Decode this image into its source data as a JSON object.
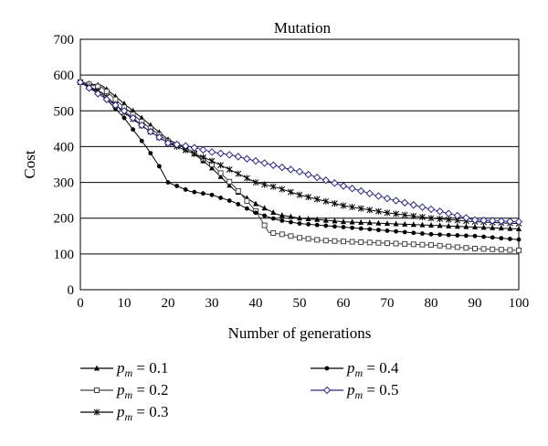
{
  "chart_data": {
    "type": "line",
    "title": "Mutation",
    "xlabel": "Number of generations",
    "ylabel": "Cost",
    "xlim": [
      0,
      100
    ],
    "ylim": [
      0,
      700
    ],
    "xticks": [
      0,
      10,
      20,
      30,
      40,
      50,
      60,
      70,
      80,
      90,
      100
    ],
    "yticks": [
      0,
      100,
      200,
      300,
      400,
      500,
      600,
      700
    ],
    "grid": "horizontal",
    "legend_position": "bottom",
    "series": [
      {
        "name_var": "p",
        "name_sub": "m",
        "name_rest": " = 0.1",
        "marker": "triangle",
        "color": "#000000",
        "x": [
          0,
          5,
          10,
          15,
          20,
          25,
          30,
          35,
          40,
          45,
          50,
          55,
          60,
          70,
          80,
          90,
          100
        ],
        "y": [
          580,
          570,
          520,
          470,
          420,
          390,
          340,
          280,
          240,
          210,
          200,
          195,
          190,
          185,
          180,
          175,
          170
        ]
      },
      {
        "name_var": "p",
        "name_sub": "m",
        "name_rest": " = 0.2",
        "marker": "square",
        "color": "#444444",
        "x": [
          0,
          5,
          10,
          15,
          20,
          25,
          30,
          35,
          40,
          43,
          46,
          50,
          55,
          60,
          70,
          80,
          90,
          100
        ],
        "y": [
          580,
          565,
          510,
          460,
          415,
          390,
          350,
          290,
          220,
          160,
          155,
          145,
          138,
          135,
          130,
          125,
          115,
          110
        ]
      },
      {
        "name_var": "p",
        "name_sub": "m",
        "name_rest": " = 0.3",
        "marker": "star",
        "color": "#000000",
        "x": [
          0,
          5,
          10,
          15,
          20,
          25,
          30,
          35,
          40,
          45,
          50,
          60,
          70,
          80,
          90,
          100
        ],
        "y": [
          580,
          550,
          495,
          450,
          410,
          385,
          360,
          330,
          300,
          285,
          265,
          235,
          215,
          200,
          190,
          185
        ]
      },
      {
        "name_var": "p",
        "name_sub": "m",
        "name_rest": " = 0.4",
        "marker": "circle",
        "color": "#000000",
        "x": [
          0,
          5,
          10,
          15,
          18,
          20,
          25,
          30,
          35,
          40,
          45,
          50,
          60,
          70,
          80,
          90,
          100
        ],
        "y": [
          580,
          545,
          480,
          400,
          345,
          300,
          275,
          265,
          245,
          215,
          195,
          185,
          175,
          165,
          155,
          150,
          140
        ]
      },
      {
        "name_var": "p",
        "name_sub": "m",
        "name_rest": " = 0.5",
        "marker": "diamond",
        "color": "#2a2a8a",
        "x": [
          0,
          5,
          10,
          15,
          20,
          25,
          30,
          35,
          40,
          45,
          50,
          60,
          70,
          80,
          90,
          100
        ],
        "y": [
          580,
          540,
          500,
          450,
          410,
          400,
          385,
          375,
          360,
          345,
          330,
          290,
          255,
          225,
          195,
          190
        ]
      }
    ]
  }
}
